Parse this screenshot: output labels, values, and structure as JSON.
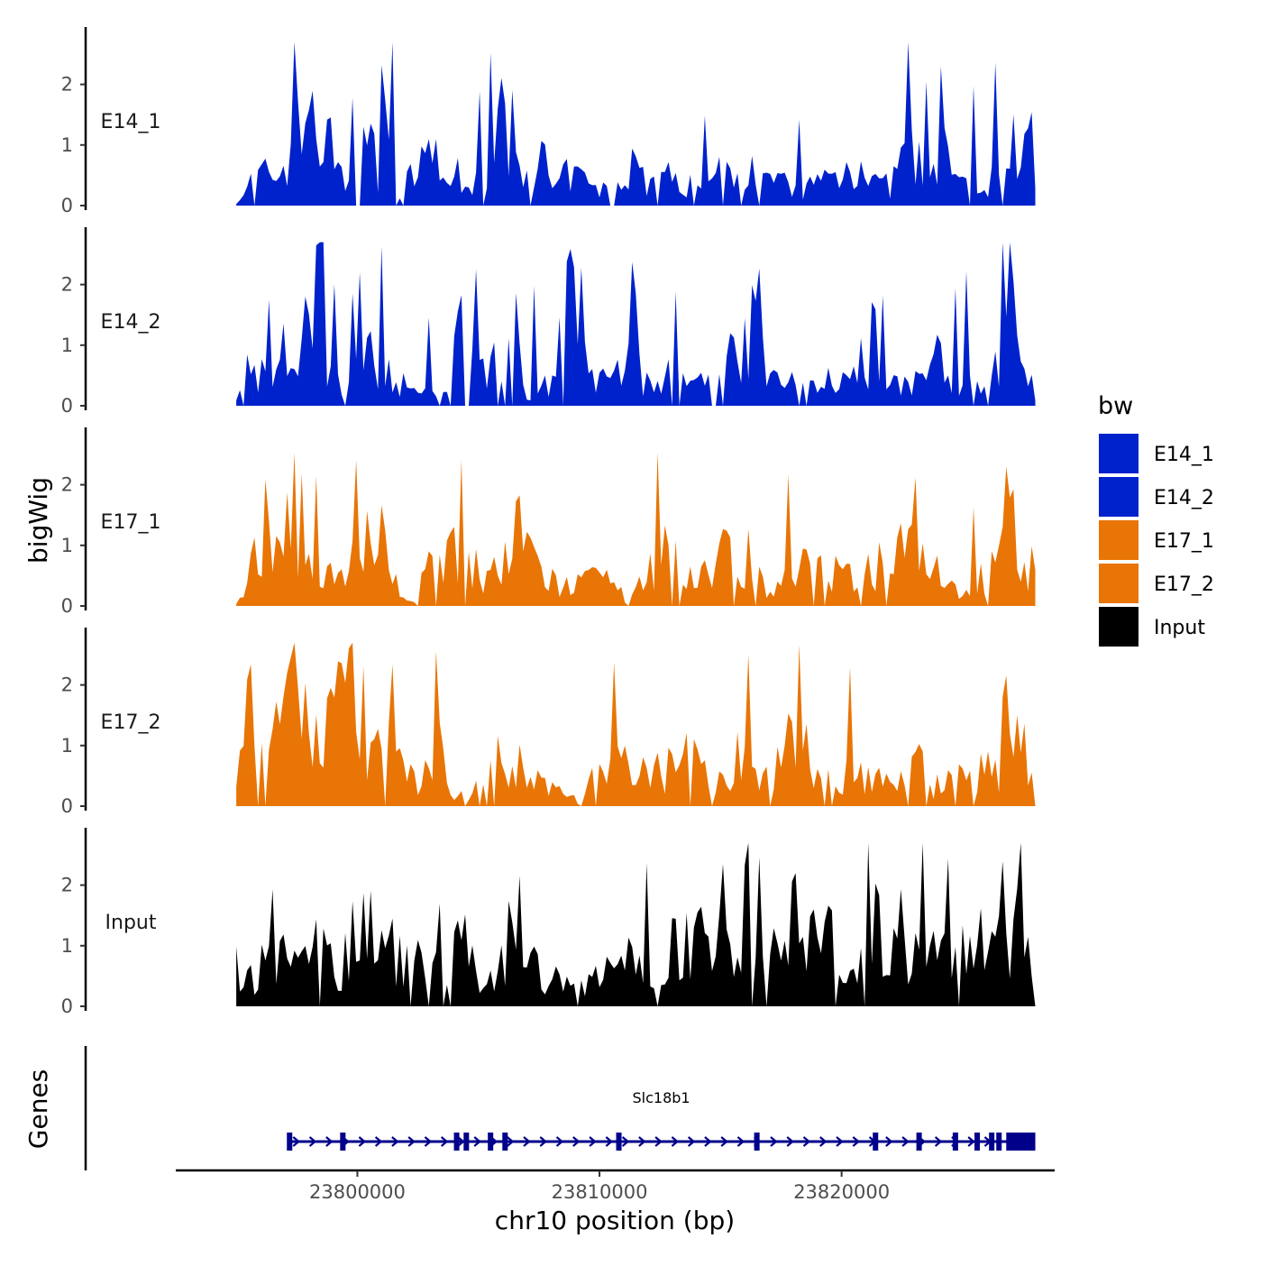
{
  "chart_data": {
    "type": "area",
    "title": "",
    "ylabel": "bigWig",
    "xlabel": "chr10 position (bp)",
    "xlim": [
      23792500,
      23828800
    ],
    "ylim": [
      0,
      2.8
    ],
    "y_ticks": [
      0,
      1,
      2
    ],
    "x_ticks": [
      23800000,
      23810000,
      23820000
    ],
    "x_tick_labels": [
      "23800000",
      "23810000",
      "23820000"
    ],
    "data_start": 23795000,
    "data_end": 23828000,
    "bin_size": 150,
    "grid": false,
    "legend": {
      "title": "bw",
      "position": "right",
      "entries": [
        {
          "name": "E14_1",
          "color": "#0022CC"
        },
        {
          "name": "E14_2",
          "color": "#0022CC"
        },
        {
          "name": "E17_1",
          "color": "#E87506"
        },
        {
          "name": "E17_2",
          "color": "#E87506"
        },
        {
          "name": "Input",
          "color": "#000000"
        }
      ]
    },
    "series": [
      {
        "name": "E14_1",
        "color": "#0022CC",
        "anchors": [
          [
            23795000,
            0.1
          ],
          [
            23795800,
            0.6
          ],
          [
            23796900,
            0.7
          ],
          [
            23797600,
            1.9
          ],
          [
            23797900,
            2.2
          ],
          [
            23798500,
            0.7
          ],
          [
            23798900,
            2.2
          ],
          [
            23799400,
            0.3
          ],
          [
            23799900,
            1.8
          ],
          [
            23801000,
            0.7
          ],
          [
            23801400,
            2.5
          ],
          [
            23801700,
            0.3
          ],
          [
            23802500,
            0.7
          ],
          [
            23803200,
            1.3
          ],
          [
            23803700,
            0.3
          ],
          [
            23804200,
            0.8
          ],
          [
            23805200,
            0.3
          ],
          [
            23805700,
            1.7
          ],
          [
            23806400,
            1.5
          ],
          [
            23806800,
            0.5
          ],
          [
            23807400,
            1.3
          ],
          [
            23808100,
            0.3
          ],
          [
            23808800,
            0.7
          ],
          [
            23810000,
            0.3
          ],
          [
            23810800,
            0.4
          ],
          [
            23811200,
            1.0
          ],
          [
            23812000,
            0.5
          ],
          [
            23812800,
            0.6
          ],
          [
            23813800,
            0.4
          ],
          [
            23814800,
            0.6
          ],
          [
            23815600,
            0.8
          ],
          [
            23816600,
            1.4
          ],
          [
            23817400,
            0.5
          ],
          [
            23818100,
            0.3
          ],
          [
            23819000,
            0.5
          ],
          [
            23820000,
            0.7
          ],
          [
            23820800,
            1.0
          ],
          [
            23821300,
            0.5
          ],
          [
            23822000,
            0.4
          ],
          [
            23822900,
            1.4
          ],
          [
            23823600,
            0.3
          ],
          [
            23824300,
            1.2
          ],
          [
            23825000,
            0.4
          ],
          [
            23825800,
            0.4
          ],
          [
            23826400,
            0.7
          ],
          [
            23826900,
            1.9
          ],
          [
            23827400,
            0.7
          ],
          [
            23827800,
            1.5
          ],
          [
            23828000,
            0.3
          ]
        ]
      },
      {
        "name": "E14_2",
        "color": "#0022CC",
        "anchors": [
          [
            23795200,
            0.2
          ],
          [
            23795500,
            1.2
          ],
          [
            23796200,
            0.5
          ],
          [
            23796800,
            1.5
          ],
          [
            23797500,
            0.6
          ],
          [
            23798300,
            2.5
          ],
          [
            23799000,
            0.5
          ],
          [
            23799800,
            0.6
          ],
          [
            23800300,
            1.4
          ],
          [
            23801300,
            0.8
          ],
          [
            23802100,
            0.3
          ],
          [
            23802800,
            0.3
          ],
          [
            23803500,
            0.2
          ],
          [
            23804400,
            1.8
          ],
          [
            23805000,
            0.6
          ],
          [
            23806100,
            1.5
          ],
          [
            23806700,
            1.7
          ],
          [
            23807000,
            0.3
          ],
          [
            23808000,
            0.5
          ],
          [
            23808800,
            2.3
          ],
          [
            23809500,
            0.7
          ],
          [
            23810300,
            0.5
          ],
          [
            23811200,
            1.0
          ],
          [
            23812000,
            0.4
          ],
          [
            23812800,
            0.8
          ],
          [
            23813500,
            0.4
          ],
          [
            23814500,
            0.5
          ],
          [
            23815100,
            1.4
          ],
          [
            23815800,
            0.6
          ],
          [
            23816400,
            2.2
          ],
          [
            23817200,
            0.5
          ],
          [
            23818000,
            0.5
          ],
          [
            23819000,
            0.6
          ],
          [
            23820000,
            0.4
          ],
          [
            23820900,
            1.0
          ],
          [
            23821500,
            0.5
          ],
          [
            23822300,
            0.4
          ],
          [
            23823000,
            0.5
          ],
          [
            23823900,
            1.0
          ],
          [
            23824700,
            0.7
          ],
          [
            23825600,
            0.4
          ],
          [
            23826300,
            0.6
          ],
          [
            23826900,
            2.2
          ],
          [
            23827300,
            1.5
          ],
          [
            23828000,
            0.1
          ]
        ]
      },
      {
        "name": "E17_1",
        "color": "#E87506",
        "anchors": [
          [
            23795000,
            0.1
          ],
          [
            23795700,
            0.8
          ],
          [
            23796100,
            2.0
          ],
          [
            23796700,
            0.8
          ],
          [
            23797700,
            1.1
          ],
          [
            23798700,
            0.6
          ],
          [
            23799600,
            1.0
          ],
          [
            23800100,
            1.6
          ],
          [
            23800700,
            0.9
          ],
          [
            23801100,
            2.5
          ],
          [
            23801500,
            0.5
          ],
          [
            23802200,
            0.1
          ],
          [
            23803000,
            0.8
          ],
          [
            23803700,
            0.9
          ],
          [
            23804500,
            1.2
          ],
          [
            23805200,
            0.6
          ],
          [
            23806000,
            0.8
          ],
          [
            23806800,
            1.6
          ],
          [
            23807600,
            0.7
          ],
          [
            23808300,
            0.4
          ],
          [
            23809400,
            0.5
          ],
          [
            23810400,
            0.5
          ],
          [
            23811200,
            0.1
          ],
          [
            23812000,
            0.8
          ],
          [
            23812900,
            1.1
          ],
          [
            23813900,
            0.7
          ],
          [
            23815000,
            1.0
          ],
          [
            23815600,
            1.4
          ],
          [
            23816500,
            0.8
          ],
          [
            23817200,
            0.3
          ],
          [
            23818000,
            0.7
          ],
          [
            23818900,
            0.9
          ],
          [
            23819900,
            0.6
          ],
          [
            23820900,
            0.8
          ],
          [
            23821500,
            0.9
          ],
          [
            23822300,
            1.4
          ],
          [
            23823200,
            1.0
          ],
          [
            23824100,
            0.6
          ],
          [
            23825000,
            0.3
          ],
          [
            23825900,
            0.6
          ],
          [
            23826900,
            2.1
          ],
          [
            23827600,
            0.8
          ],
          [
            23828000,
            1.0
          ]
        ]
      },
      {
        "name": "E17_2",
        "color": "#E87506",
        "anchors": [
          [
            23795000,
            1.1
          ],
          [
            23795700,
            2.2
          ],
          [
            23796400,
            1.3
          ],
          [
            23797400,
            2.3
          ],
          [
            23798100,
            1.6
          ],
          [
            23798800,
            1.4
          ],
          [
            23799600,
            2.5
          ],
          [
            23800100,
            0.7
          ],
          [
            23800700,
            1.2
          ],
          [
            23801200,
            1.4
          ],
          [
            23801900,
            0.9
          ],
          [
            23802700,
            0.6
          ],
          [
            23803400,
            1.6
          ],
          [
            23803900,
            0.1
          ],
          [
            23804700,
            0.4
          ],
          [
            23805400,
            0.8
          ],
          [
            23806200,
            1.2
          ],
          [
            23806800,
            0.7
          ],
          [
            23807500,
            0.5
          ],
          [
            23808200,
            0.3
          ],
          [
            23809200,
            0.1
          ],
          [
            23810000,
            0.8
          ],
          [
            23810800,
            0.8
          ],
          [
            23811800,
            0.7
          ],
          [
            23812700,
            0.8
          ],
          [
            23813700,
            1.1
          ],
          [
            23814400,
            0.6
          ],
          [
            23815300,
            1.0
          ],
          [
            23816100,
            0.9
          ],
          [
            23816700,
            0.7
          ],
          [
            23817500,
            1.0
          ],
          [
            23818200,
            1.8
          ],
          [
            23818900,
            0.6
          ],
          [
            23819900,
            0.6
          ],
          [
            23820800,
            0.7
          ],
          [
            23821300,
            0.6
          ],
          [
            23822200,
            0.5
          ],
          [
            23822900,
            1.0
          ],
          [
            23823900,
            0.4
          ],
          [
            23824800,
            0.6
          ],
          [
            23825700,
            0.8
          ],
          [
            23826800,
            0.8
          ],
          [
            23827300,
            1.8
          ],
          [
            23828000,
            0.3
          ]
        ]
      },
      {
        "name": "Input",
        "color": "#000000",
        "anchors": [
          [
            23795000,
            0.8
          ],
          [
            23795900,
            0.6
          ],
          [
            23796400,
            1.6
          ],
          [
            23797300,
            1.0
          ],
          [
            23798400,
            1.4
          ],
          [
            23799300,
            0.9
          ],
          [
            23800100,
            1.9
          ],
          [
            23800700,
            1.5
          ],
          [
            23801500,
            1.1
          ],
          [
            23802300,
            1.2
          ],
          [
            23802900,
            0.6
          ],
          [
            23803600,
            0.8
          ],
          [
            23804400,
            1.4
          ],
          [
            23805300,
            0.6
          ],
          [
            23806300,
            1.4
          ],
          [
            23806800,
            1.1
          ],
          [
            23807700,
            0.8
          ],
          [
            23808300,
            0.5
          ],
          [
            23809000,
            0.5
          ],
          [
            23809800,
            0.5
          ],
          [
            23810700,
            1.3
          ],
          [
            23811600,
            0.8
          ],
          [
            23812700,
            1.1
          ],
          [
            23813400,
            1.5
          ],
          [
            23814300,
            1.3
          ],
          [
            23815300,
            1.2
          ],
          [
            23815900,
            2.2
          ],
          [
            23816800,
            0.9
          ],
          [
            23817400,
            1.2
          ],
          [
            23818000,
            1.0
          ],
          [
            23818700,
            1.2
          ],
          [
            23819500,
            1.5
          ],
          [
            23820300,
            1.2
          ],
          [
            23821200,
            2.0
          ],
          [
            23821800,
            1.2
          ],
          [
            23822700,
            0.9
          ],
          [
            23823300,
            1.2
          ],
          [
            23824000,
            1.3
          ],
          [
            23824800,
            1.1
          ],
          [
            23825600,
            1.4
          ],
          [
            23826300,
            1.1
          ],
          [
            23827000,
            1.8
          ],
          [
            23827600,
            1.2
          ],
          [
            23828000,
            1.3
          ]
        ]
      }
    ],
    "genes": {
      "facet_label": "Genes",
      "track": [
        {
          "name": "Slc18b1",
          "start": 23797100,
          "end": 23828000,
          "strand": "+",
          "exons": [
            23797200,
            23799400,
            23804100,
            23804500,
            23805500,
            23806100,
            23810800,
            23816500,
            23821400,
            23823200,
            23824700,
            23825600,
            23826200,
            23826500
          ],
          "utr_block": [
            23826800,
            23828000
          ]
        }
      ]
    }
  }
}
